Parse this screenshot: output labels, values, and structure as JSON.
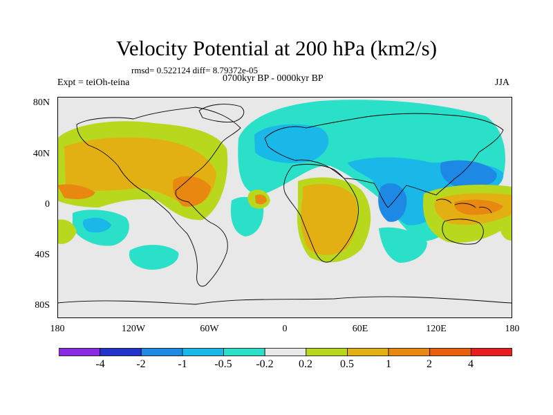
{
  "header": {
    "title": "Velocity Potential at 200 hPa (km2/s)",
    "stats": "rmsd= 0.522124 diff= 8.79372e-05",
    "period": "0700kyr BP - 0000kyr BP",
    "experiment": "Expt = teiOh-teina",
    "season": "JJA"
  },
  "axes": {
    "y_labels": [
      "80N",
      "40N",
      "0",
      "40S",
      "80S"
    ],
    "x_labels": [
      "180",
      "120W",
      "60W",
      "0",
      "60E",
      "120E",
      "180"
    ]
  },
  "colorbar": {
    "labels": [
      "-4",
      "-2",
      "-1",
      "-0.5",
      "-0.2",
      "0.2",
      "0.5",
      "1",
      "2",
      "4"
    ],
    "colors": [
      "#8a2be2",
      "#2233cc",
      "#1e88e5",
      "#19b8e8",
      "#2be0c8",
      "#e8e8e8",
      "#b8d81e",
      "#e3b014",
      "#e88810",
      "#e8600e",
      "#e81e1e"
    ]
  },
  "palette": {
    "background": "#e8e8e8",
    "neg_weak": "#2be0c8",
    "neg_mid": "#19b8e8",
    "neg_strong": "#1e88e5",
    "pos_weak": "#b8d81e",
    "pos_mid": "#e3b014",
    "pos_strong": "#e88810"
  }
}
